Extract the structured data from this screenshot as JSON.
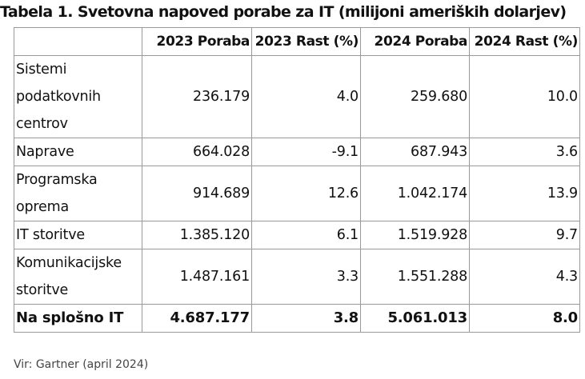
{
  "title": "Tabela 1. Svetovna napoved porabe za IT (milijoni ameriških dolarjev)",
  "table": {
    "headers": [
      "",
      "2023 Poraba",
      "2023 Rast (%)",
      "2024 Poraba",
      "2024 Rast (%)"
    ],
    "rows": [
      {
        "label": "Sistemi podatkovnih centrov",
        "values": [
          "236.179",
          "4.0",
          "259.680",
          "10.0"
        ]
      },
      {
        "label": "Naprave",
        "values": [
          "664.028",
          "-9.1",
          "687.943",
          "3.6"
        ]
      },
      {
        "label": "Programska oprema",
        "values": [
          "914.689",
          "12.6",
          "1.042.174",
          "13.9"
        ]
      },
      {
        "label": "IT storitve",
        "values": [
          "1.385.120",
          "6.1",
          "1.519.928",
          "9.7"
        ]
      },
      {
        "label": "Komunikacijske storitve",
        "values": [
          "1.487.161",
          "3.3",
          "1.551.288",
          "4.3"
        ]
      }
    ],
    "total": {
      "label": "Na splošno IT",
      "values": [
        "4.687.177",
        "3.8",
        "5.061.013",
        "8.0"
      ]
    }
  },
  "source": "Vir: Gartner (april 2024)"
}
